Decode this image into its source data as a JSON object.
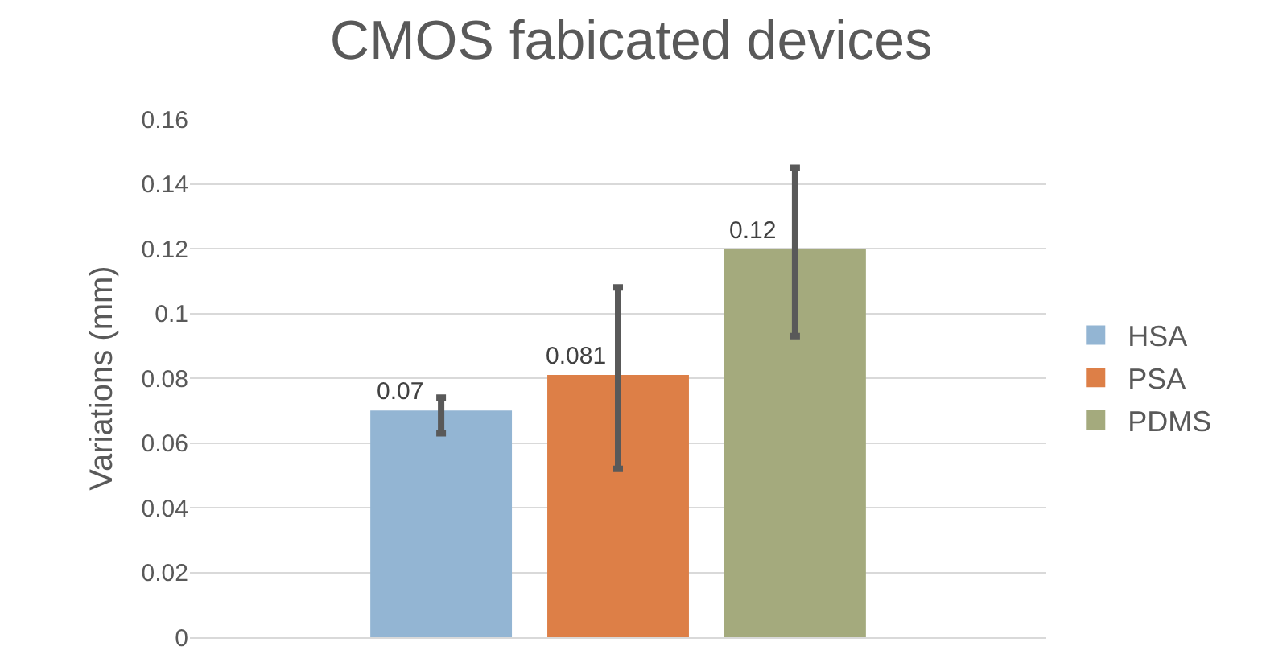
{
  "chart_data": {
    "type": "bar",
    "title": "CMOS fabicated devices",
    "ylabel": "Variations (mm)",
    "categories": [
      null
    ],
    "series": [
      {
        "name": "HSA",
        "color": "#93b5d3",
        "values": [
          0.07
        ],
        "errors": [
          [
            0.063,
            0.074
          ]
        ]
      },
      {
        "name": "PSA",
        "color": "#dd7f47",
        "values": [
          0.081
        ],
        "errors": [
          [
            0.052,
            0.108
          ]
        ]
      },
      {
        "name": "PDMS",
        "color": "#a4aa7d",
        "values": [
          0.12
        ],
        "errors": [
          [
            0.093,
            0.145
          ]
        ]
      }
    ],
    "ylim": [
      0,
      0.16
    ],
    "yticks": [
      0,
      0.02,
      0.04,
      0.06,
      0.08,
      0.1,
      0.12,
      0.14,
      0.16
    ],
    "grid": "y",
    "legend": "right",
    "data_labels": true
  }
}
